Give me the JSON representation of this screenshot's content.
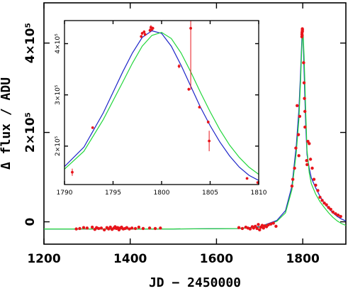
{
  "chart_data": [
    {
      "type": "scatter",
      "title": "",
      "xlabel": "JD − 2450000",
      "ylabel": "Δ flux / ADU",
      "xlim": [
        1200,
        1900
      ],
      "ylim": [
        -50000,
        490000
      ],
      "x_ticks": [
        {
          "value": 1200,
          "label": "1200"
        },
        {
          "value": 1400,
          "label": "1400"
        },
        {
          "value": 1600,
          "label": "1600"
        },
        {
          "value": 1800,
          "label": "1800"
        }
      ],
      "y_ticks": [
        {
          "value": 0,
          "label": "0"
        },
        {
          "value": 200000,
          "label": "2×10⁵"
        },
        {
          "value": 400000,
          "label": "4×10⁵"
        }
      ],
      "grid": false,
      "legend": "none",
      "series": [
        {
          "kind": "points",
          "color": "#e8141b",
          "points": [
            [
              1275,
              -16000
            ],
            [
              1283,
              -15000
            ],
            [
              1292,
              -13000
            ],
            [
              1300,
              -14000
            ],
            [
              1312,
              -12000
            ],
            [
              1318,
              -17000
            ],
            [
              1322,
              -13000
            ],
            [
              1327,
              -15000
            ],
            [
              1333,
              -14000
            ],
            [
              1340,
              -18000
            ],
            [
              1346,
              -13000
            ],
            [
              1350,
              -16000
            ],
            [
              1354,
              -12000
            ],
            [
              1358,
              -17000
            ],
            [
              1362,
              -14000
            ],
            [
              1365,
              -11000
            ],
            [
              1368,
              -15000
            ],
            [
              1371,
              -13000
            ],
            [
              1374,
              -18000
            ],
            [
              1377,
              -14000
            ],
            [
              1380,
              -12000
            ],
            [
              1384,
              -16000
            ],
            [
              1388,
              -15000
            ],
            [
              1392,
              -13000
            ],
            [
              1398,
              -16000
            ],
            [
              1404,
              -14000
            ],
            [
              1412,
              -15000
            ],
            [
              1420,
              -12000
            ],
            [
              1430,
              -15000
            ],
            [
              1445,
              -14000
            ],
            [
              1458,
              -15000
            ],
            [
              1470,
              -14000
            ],
            [
              1652,
              -13000
            ],
            [
              1660,
              -15000
            ],
            [
              1668,
              -12000
            ],
            [
              1673,
              -14000
            ],
            [
              1678,
              -16000
            ],
            [
              1683,
              -11000
            ],
            [
              1686,
              -14000
            ],
            [
              1690,
              -10000
            ],
            [
              1694,
              -15000
            ],
            [
              1697,
              -6000
            ],
            [
              1700,
              -18000
            ],
            [
              1703,
              -12000
            ],
            [
              1706,
              -8000
            ],
            [
              1709,
              -14000
            ],
            [
              1712,
              -9000
            ],
            [
              1716,
              -11000
            ],
            [
              1720,
              -7000
            ],
            [
              1726,
              -5000
            ],
            [
              1732,
              -3000
            ],
            [
              1738,
              -10000
            ],
            [
              1775,
              80000
            ],
            [
              1777,
              95000
            ],
            [
              1781,
              120000
            ],
            [
              1784,
              165000
            ],
            [
              1787,
              260000
            ],
            [
              1790,
              195000
            ],
            [
              1791.0,
              148000
            ],
            [
              1793.0,
              236000
            ],
            [
              1798.0,
              414000
            ],
            [
              1798.2,
              420000
            ],
            [
              1798.4,
              424000
            ],
            [
              1798.6,
              417000
            ],
            [
              1799.0,
              428000
            ],
            [
              1799.1,
              432000
            ],
            [
              1799.2,
              426000
            ],
            [
              1799.3,
              430000
            ],
            [
              1802.0,
              356000
            ],
            [
              1803.0,
              311000
            ],
            [
              1804.0,
              276000
            ],
            [
              1805.0,
              247000
            ],
            [
              1805.2,
              212000
            ],
            [
              1809.0,
              137000
            ],
            [
              1810.0,
              128000
            ],
            [
              1812,
              180000
            ],
            [
              1815,
              175000
            ],
            [
              1818,
              140000
            ],
            [
              1822,
              120000
            ],
            [
              1826,
              95000
            ],
            [
              1830,
              82000
            ],
            [
              1835,
              70000
            ],
            [
              1840,
              55000
            ],
            [
              1845,
              48000
            ],
            [
              1850,
              42000
            ],
            [
              1855,
              38000
            ],
            [
              1860,
              32000
            ],
            [
              1865,
              28000
            ],
            [
              1870,
              22000
            ],
            [
              1876,
              18000
            ],
            [
              1882,
              15000
            ],
            [
              1888,
              12000
            ]
          ]
        },
        {
          "kind": "model",
          "name_note": "blue curve",
          "color": "#1c24c8",
          "points": [
            [
              1200,
              -16000
            ],
            [
              1500,
              -16000
            ],
            [
              1650,
              -15000
            ],
            [
              1700,
              -11000
            ],
            [
              1740,
              3000
            ],
            [
              1760,
              25000
            ],
            [
              1775,
              80000
            ],
            [
              1785,
              170000
            ],
            [
              1791,
              250000
            ],
            [
              1795,
              335000
            ],
            [
              1797,
              385000
            ],
            [
              1798.5,
              420000
            ],
            [
              1800,
              426000
            ],
            [
              1801,
              405000
            ],
            [
              1803,
              340000
            ],
            [
              1805,
              275000
            ],
            [
              1807,
              215000
            ],
            [
              1810,
              150000
            ],
            [
              1815,
              120000
            ],
            [
              1820,
              98000
            ],
            [
              1830,
              76000
            ],
            [
              1840,
              57000
            ],
            [
              1850,
              42000
            ],
            [
              1860,
              30000
            ],
            [
              1870,
              20000
            ],
            [
              1880,
              12000
            ],
            [
              1890,
              6000
            ],
            [
              1900,
              2000
            ]
          ]
        },
        {
          "kind": "model",
          "name_note": "green curve",
          "color": "#22d63b",
          "points": [
            [
              1200,
              -16000
            ],
            [
              1500,
              -16000
            ],
            [
              1650,
              -15000
            ],
            [
              1700,
              -12000
            ],
            [
              1740,
              1000
            ],
            [
              1760,
              20000
            ],
            [
              1775,
              72000
            ],
            [
              1785,
              155000
            ],
            [
              1791,
              228000
            ],
            [
              1795,
              315000
            ],
            [
              1797.5,
              382000
            ],
            [
              1799.5,
              420000
            ],
            [
              1801,
              418000
            ],
            [
              1803,
              372000
            ],
            [
              1805,
              310000
            ],
            [
              1807,
              245000
            ],
            [
              1810,
              160000
            ],
            [
              1815,
              110000
            ],
            [
              1820,
              85000
            ],
            [
              1830,
              62000
            ],
            [
              1840,
              45000
            ],
            [
              1850,
              32000
            ],
            [
              1860,
              20000
            ],
            [
              1870,
              10000
            ],
            [
              1880,
              2000
            ],
            [
              1890,
              -4000
            ],
            [
              1900,
              -8000
            ]
          ]
        }
      ]
    },
    {
      "type": "scatter",
      "title": "",
      "xlabel": "",
      "ylabel": "",
      "xlim": [
        1790,
        1810
      ],
      "ylim": [
        125000,
        445000
      ],
      "x_ticks": [
        {
          "value": 1790,
          "label": "1790"
        },
        {
          "value": 1795,
          "label": "1795"
        },
        {
          "value": 1800,
          "label": "1800"
        },
        {
          "value": 1805,
          "label": "1805"
        },
        {
          "value": 1810,
          "label": "1810"
        }
      ],
      "y_ticks": [
        {
          "value": 200000,
          "label": "2×10⁵"
        },
        {
          "value": 300000,
          "label": "3×10⁵"
        },
        {
          "value": 400000,
          "label": "4×10⁵"
        }
      ],
      "grid": false,
      "legend": "none",
      "series": [
        {
          "kind": "points",
          "color": "#e8141b",
          "points": [
            {
              "x": 1790.8,
              "y": 149000,
              "err": 7000
            },
            {
              "x": 1792.9,
              "y": 236000,
              "err": 2000
            },
            {
              "x": 1797.9,
              "y": 414000,
              "err": 3000
            },
            {
              "x": 1798.0,
              "y": 420000,
              "err": 3000
            },
            {
              "x": 1798.2,
              "y": 423000,
              "err": 3000
            },
            {
              "x": 1798.3,
              "y": 418000,
              "err": 3000
            },
            {
              "x": 1798.8,
              "y": 426000,
              "err": 4000
            },
            {
              "x": 1798.9,
              "y": 432000,
              "err": 4000
            },
            {
              "x": 1799.0,
              "y": 428000,
              "err": 3000
            },
            {
              "x": 1799.1,
              "y": 430000,
              "err": 3000
            },
            {
              "x": 1801.8,
              "y": 356000,
              "err": 4000
            },
            {
              "x": 1802.8,
              "y": 311000,
              "err": 3000
            },
            {
              "x": 1803.0,
              "y": 430000,
              "err": 120000
            },
            {
              "x": 1803.9,
              "y": 276000,
              "err": 2000
            },
            {
              "x": 1804.8,
              "y": 247000,
              "err": 3000
            },
            {
              "x": 1804.9,
              "y": 210000,
              "err": 20000
            },
            {
              "x": 1808.8,
              "y": 137000,
              "err": 2000
            },
            {
              "x": 1809.9,
              "y": 129000,
              "err": 2000
            }
          ]
        },
        {
          "kind": "model",
          "name_note": "blue curve",
          "color": "#1c24c8",
          "points": [
            [
              1790,
              160000
            ],
            [
              1792,
              198000
            ],
            [
              1794,
              265000
            ],
            [
              1796,
              345000
            ],
            [
              1797,
              382000
            ],
            [
              1798,
              412000
            ],
            [
              1799,
              425000
            ],
            [
              1800,
              420000
            ],
            [
              1801,
              395000
            ],
            [
              1802,
              358000
            ],
            [
              1803,
              317000
            ],
            [
              1804,
              276000
            ],
            [
              1805,
              240000
            ],
            [
              1806,
              208000
            ],
            [
              1807,
              181000
            ],
            [
              1808,
              159000
            ],
            [
              1809,
              143000
            ],
            [
              1810,
              133000
            ]
          ]
        },
        {
          "kind": "model",
          "name_note": "green curve",
          "color": "#22d63b",
          "points": [
            [
              1790,
              155000
            ],
            [
              1792,
              190000
            ],
            [
              1794,
              252000
            ],
            [
              1796,
              325000
            ],
            [
              1797,
              362000
            ],
            [
              1798,
              395000
            ],
            [
              1799,
              416000
            ],
            [
              1800,
              422000
            ],
            [
              1801,
              410000
            ],
            [
              1802,
              382000
            ],
            [
              1803,
              345000
            ],
            [
              1804,
              305000
            ],
            [
              1805,
              267000
            ],
            [
              1806,
              232000
            ],
            [
              1807,
              202000
            ],
            [
              1808,
              178000
            ],
            [
              1809,
              159000
            ],
            [
              1810,
              145000
            ]
          ]
        }
      ]
    }
  ]
}
